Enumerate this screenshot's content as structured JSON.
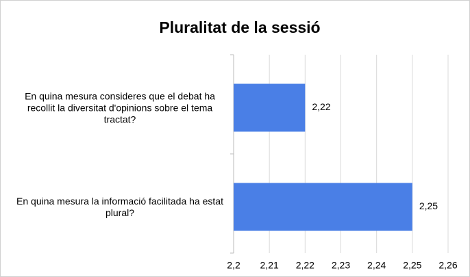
{
  "chart_data": {
    "type": "hbar",
    "title": "Pluralitat de la sessió",
    "categories": [
      "En quina mesura consideres que el debat ha recollit la diversitat d'opinions sobre el tema tractat?",
      "En quina mesura la informació facilitada ha estat plural?"
    ],
    "values": [
      2.22,
      2.25
    ],
    "value_labels": [
      "2,22",
      "2,25"
    ],
    "color": "#4a7fe6",
    "xlim": [
      2.2,
      2.26
    ],
    "xticks": [
      {
        "value": 2.2,
        "label": "2,2"
      },
      {
        "value": 2.21,
        "label": "2,21"
      },
      {
        "value": 2.22,
        "label": "2,22"
      },
      {
        "value": 2.23,
        "label": "2,23"
      },
      {
        "value": 2.24,
        "label": "2,24"
      },
      {
        "value": 2.25,
        "label": "2,25"
      },
      {
        "value": 2.26,
        "label": "2,26"
      }
    ],
    "grid": true
  }
}
